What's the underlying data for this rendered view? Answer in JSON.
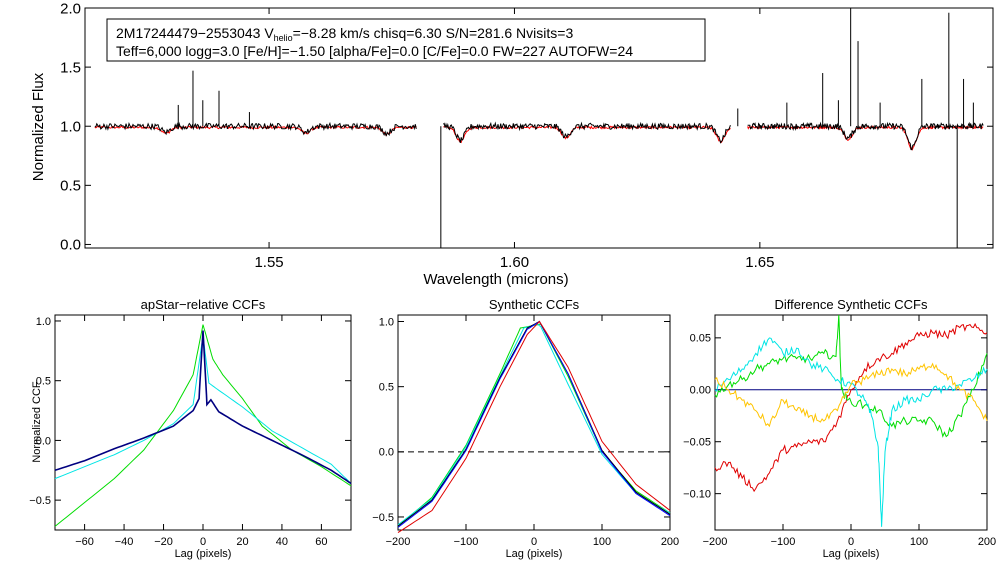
{
  "chart_data": [
    {
      "type": "line",
      "id": "spectrum",
      "title": "",
      "xlabel": "Wavelength (microns)",
      "ylabel": "Normalized Flux",
      "xlim": [
        1.5125,
        1.6975
      ],
      "ylim": [
        -0.03,
        2.0
      ],
      "xticks": [
        "1.55",
        "1.60",
        "1.65"
      ],
      "yticks": [
        "0.0",
        "0.5",
        "1.0",
        "1.5",
        "2.0"
      ],
      "info": {
        "star_id": "2M17244479−2553043",
        "vhelio_label": "V",
        "vhelio_sub": "helio",
        "vhelio_value": "=−8.28 km/s",
        "rest_line1": "  chisq=6.30  S/N=281.6  Nvisits=3",
        "line2": "Teff=6,000 logg=3.0 [Fe/H]=−1.50 [alpha/Fe]=0.0 [C/Fe]=0.0 FW=227 AUTOFW=24"
      },
      "chips": [
        [
          1.5145,
          1.58
        ],
        [
          1.5855,
          1.644
        ],
        [
          1.6475,
          1.6955
        ]
      ],
      "series": [
        {
          "name": "observed",
          "color": "#000000",
          "level": 1.0
        },
        {
          "name": "model",
          "color": "#ff0000",
          "level": 0.99
        }
      ],
      "spikes": [
        {
          "x": 1.5315,
          "y": 1.18
        },
        {
          "x": 1.5345,
          "y": 1.47
        },
        {
          "x": 1.5365,
          "y": 1.22
        },
        {
          "x": 1.5398,
          "y": 1.3
        },
        {
          "x": 1.546,
          "y": 1.12
        },
        {
          "x": 1.6455,
          "y": 1.15
        },
        {
          "x": 1.6555,
          "y": 1.2
        },
        {
          "x": 1.6628,
          "y": 1.45
        },
        {
          "x": 1.666,
          "y": 1.22
        },
        {
          "x": 1.6685,
          "y": 2.0
        },
        {
          "x": 1.67,
          "y": 1.72
        },
        {
          "x": 1.6745,
          "y": 1.2
        },
        {
          "x": 1.683,
          "y": 1.4
        },
        {
          "x": 1.6885,
          "y": 1.96
        },
        {
          "x": 1.6915,
          "y": 1.4
        },
        {
          "x": 1.6935,
          "y": 1.2
        }
      ],
      "drops": [
        {
          "x": 1.585,
          "y": -0.03
        },
        {
          "x": 1.6902,
          "y": -0.03
        }
      ],
      "absorptions": [
        {
          "x": 1.589,
          "depth": 0.12
        },
        {
          "x": 1.6105,
          "depth": 0.09
        },
        {
          "x": 1.642,
          "depth": 0.12
        },
        {
          "x": 1.668,
          "depth": 0.1
        },
        {
          "x": 1.681,
          "depth": 0.18
        },
        {
          "x": 1.529,
          "depth": 0.05
        },
        {
          "x": 1.5575,
          "depth": 0.05
        },
        {
          "x": 1.574,
          "depth": 0.06
        }
      ]
    },
    {
      "type": "line",
      "id": "apstar_ccf",
      "title": "apStar−relative CCFs",
      "xlabel": "Lag (pixels)",
      "ylabel": "Normalized CCF",
      "xlim": [
        -75,
        75
      ],
      "ylim": [
        -0.75,
        1.05
      ],
      "xticks": [
        "−60",
        "−40",
        "−20",
        "0",
        "20",
        "40",
        "60"
      ],
      "yticks": [
        "−0.5",
        "0.0",
        "0.5",
        "1.0"
      ],
      "series": [
        {
          "name": "green",
          "color": "#00dd00",
          "points": [
            [
              -75,
              -0.72
            ],
            [
              -60,
              -0.52
            ],
            [
              -45,
              -0.32
            ],
            [
              -30,
              -0.08
            ],
            [
              -15,
              0.25
            ],
            [
              -5,
              0.55
            ],
            [
              0,
              0.97
            ],
            [
              5,
              0.68
            ],
            [
              10,
              0.55
            ],
            [
              20,
              0.35
            ],
            [
              30,
              0.12
            ],
            [
              45,
              -0.08
            ],
            [
              60,
              -0.22
            ],
            [
              75,
              -0.38
            ]
          ]
        },
        {
          "name": "cyan",
          "color": "#00e5e5",
          "points": [
            [
              -75,
              -0.32
            ],
            [
              -60,
              -0.22
            ],
            [
              -45,
              -0.12
            ],
            [
              -30,
              0.0
            ],
            [
              -15,
              0.14
            ],
            [
              -5,
              0.3
            ],
            [
              0,
              0.88
            ],
            [
              3,
              0.48
            ],
            [
              8,
              0.42
            ],
            [
              20,
              0.28
            ],
            [
              35,
              0.08
            ],
            [
              50,
              -0.06
            ],
            [
              65,
              -0.2
            ],
            [
              75,
              -0.36
            ]
          ]
        },
        {
          "name": "navy",
          "color": "#000080",
          "points": [
            [
              -75,
              -0.25
            ],
            [
              -60,
              -0.17
            ],
            [
              -45,
              -0.07
            ],
            [
              -30,
              0.02
            ],
            [
              -15,
              0.12
            ],
            [
              -5,
              0.25
            ],
            [
              -2,
              0.35
            ],
            [
              0,
              0.92
            ],
            [
              2,
              0.3
            ],
            [
              4,
              0.34
            ],
            [
              8,
              0.24
            ],
            [
              20,
              0.12
            ],
            [
              35,
              0.0
            ],
            [
              50,
              -0.12
            ],
            [
              65,
              -0.25
            ],
            [
              75,
              -0.36
            ]
          ]
        }
      ]
    },
    {
      "type": "line",
      "id": "synthetic_ccf",
      "title": "Synthetic CCFs",
      "xlabel": "Lag (pixels)",
      "ylabel": "",
      "xlim": [
        -200,
        200
      ],
      "ylim": [
        -0.6,
        1.05
      ],
      "xticks": [
        "−200",
        "−100",
        "0",
        "100",
        "200"
      ],
      "yticks": [
        "−0.5",
        "0.0",
        "0.5",
        "1.0"
      ],
      "zero_line": 0.0,
      "series": [
        {
          "name": "green",
          "color": "#00dd00",
          "points": [
            [
              -200,
              -0.57
            ],
            [
              -150,
              -0.35
            ],
            [
              -100,
              0.05
            ],
            [
              -50,
              0.6
            ],
            [
              -20,
              0.95
            ],
            [
              0,
              0.97
            ],
            [
              10,
              0.98
            ],
            [
              50,
              0.58
            ],
            [
              100,
              0.0
            ],
            [
              150,
              -0.3
            ],
            [
              200,
              -0.47
            ]
          ]
        },
        {
          "name": "cyan",
          "color": "#00e5e5",
          "points": [
            [
              -200,
              -0.56
            ],
            [
              -150,
              -0.36
            ],
            [
              -100,
              0.04
            ],
            [
              -50,
              0.58
            ],
            [
              -15,
              0.95
            ],
            [
              5,
              0.98
            ],
            [
              10,
              0.96
            ],
            [
              50,
              0.52
            ],
            [
              100,
              -0.02
            ],
            [
              150,
              -0.32
            ],
            [
              200,
              -0.47
            ]
          ]
        },
        {
          "name": "black",
          "color": "#000000",
          "points": [
            [
              -200,
              -0.57
            ],
            [
              -150,
              -0.37
            ],
            [
              -100,
              0.02
            ],
            [
              -50,
              0.57
            ],
            [
              -10,
              0.95
            ],
            [
              8,
              1.0
            ],
            [
              50,
              0.6
            ],
            [
              100,
              0.01
            ],
            [
              150,
              -0.31
            ],
            [
              200,
              -0.48
            ]
          ]
        },
        {
          "name": "blue",
          "color": "#0000ff",
          "points": [
            [
              -200,
              -0.58
            ],
            [
              -150,
              -0.38
            ],
            [
              -100,
              0.01
            ],
            [
              -50,
              0.56
            ],
            [
              -10,
              0.94
            ],
            [
              8,
              1.0
            ],
            [
              50,
              0.6
            ],
            [
              100,
              0.0
            ],
            [
              150,
              -0.32
            ],
            [
              200,
              -0.49
            ]
          ]
        },
        {
          "name": "red",
          "color": "#e00000",
          "points": [
            [
              -200,
              -0.62
            ],
            [
              -150,
              -0.45
            ],
            [
              -100,
              -0.05
            ],
            [
              -50,
              0.5
            ],
            [
              -10,
              0.9
            ],
            [
              8,
              1.0
            ],
            [
              50,
              0.65
            ],
            [
              100,
              0.08
            ],
            [
              150,
              -0.25
            ],
            [
              200,
              -0.45
            ]
          ]
        }
      ]
    },
    {
      "type": "line",
      "id": "difference_ccf",
      "title": "Difference Synthetic CCFs",
      "xlabel": "Lag (pixels)",
      "ylabel": "",
      "xlim": [
        -200,
        200
      ],
      "ylim": [
        -0.135,
        0.072
      ],
      "xticks": [
        "−200",
        "−100",
        "0",
        "100",
        "200"
      ],
      "yticks": [
        "−0.10",
        "−0.05",
        "0.00",
        "0.05"
      ],
      "series": [
        {
          "name": "navy",
          "color": "#000080",
          "points": [
            [
              -200,
              0.0
            ],
            [
              200,
              0.0
            ]
          ]
        },
        {
          "name": "red",
          "color": "#e00000",
          "points": [
            [
              -200,
              -0.075
            ],
            [
              -180,
              -0.07
            ],
            [
              -160,
              -0.085
            ],
            [
              -140,
              -0.095
            ],
            [
              -120,
              -0.08
            ],
            [
              -100,
              -0.058
            ],
            [
              -80,
              -0.055
            ],
            [
              -60,
              -0.05
            ],
            [
              -40,
              -0.05
            ],
            [
              -20,
              -0.03
            ],
            [
              0,
              0.0
            ],
            [
              20,
              0.02
            ],
            [
              40,
              0.03
            ],
            [
              60,
              0.035
            ],
            [
              80,
              0.045
            ],
            [
              100,
              0.052
            ],
            [
              120,
              0.055
            ],
            [
              140,
              0.052
            ],
            [
              160,
              0.06
            ],
            [
              180,
              0.06
            ],
            [
              200,
              0.055
            ]
          ]
        },
        {
          "name": "green",
          "color": "#00dd00",
          "points": [
            [
              -200,
              -0.005
            ],
            [
              -180,
              0.005
            ],
            [
              -160,
              0.01
            ],
            [
              -140,
              0.02
            ],
            [
              -120,
              0.025
            ],
            [
              -100,
              0.03
            ],
            [
              -80,
              0.03
            ],
            [
              -60,
              0.03
            ],
            [
              -40,
              0.035
            ],
            [
              -22,
              0.032
            ],
            [
              -18,
              0.072
            ],
            [
              -14,
              0.0
            ],
            [
              -5,
              -0.01
            ],
            [
              20,
              -0.015
            ],
            [
              40,
              -0.02
            ],
            [
              60,
              -0.035
            ],
            [
              80,
              -0.03
            ],
            [
              100,
              -0.03
            ],
            [
              120,
              -0.03
            ],
            [
              140,
              -0.045
            ],
            [
              160,
              -0.025
            ],
            [
              180,
              0.0
            ],
            [
              200,
              0.035
            ]
          ]
        },
        {
          "name": "cyan",
          "color": "#00e5e5",
          "points": [
            [
              -200,
              0.0
            ],
            [
              -180,
              0.01
            ],
            [
              -160,
              0.02
            ],
            [
              -140,
              0.035
            ],
            [
              -120,
              0.05
            ],
            [
              -100,
              0.035
            ],
            [
              -80,
              0.04
            ],
            [
              -60,
              0.025
            ],
            [
              -40,
              0.02
            ],
            [
              -20,
              0.01
            ],
            [
              0,
              0.005
            ],
            [
              20,
              -0.01
            ],
            [
              30,
              -0.025
            ],
            [
              40,
              -0.055
            ],
            [
              45,
              -0.132
            ],
            [
              50,
              -0.06
            ],
            [
              60,
              -0.02
            ],
            [
              80,
              -0.01
            ],
            [
              100,
              -0.01
            ],
            [
              120,
              0.0
            ],
            [
              140,
              0.0
            ],
            [
              160,
              0.005
            ],
            [
              180,
              0.01
            ],
            [
              200,
              0.02
            ]
          ]
        },
        {
          "name": "orange",
          "color": "#ffc400",
          "points": [
            [
              -200,
              0.01
            ],
            [
              -180,
              0.0
            ],
            [
              -160,
              -0.01
            ],
            [
              -140,
              -0.02
            ],
            [
              -120,
              -0.035
            ],
            [
              -100,
              -0.01
            ],
            [
              -80,
              -0.02
            ],
            [
              -60,
              -0.025
            ],
            [
              -40,
              -0.03
            ],
            [
              -20,
              -0.02
            ],
            [
              0,
              0.005
            ],
            [
              20,
              0.01
            ],
            [
              40,
              0.015
            ],
            [
              60,
              0.02
            ],
            [
              80,
              0.015
            ],
            [
              100,
              0.02
            ],
            [
              120,
              0.025
            ],
            [
              140,
              0.015
            ],
            [
              160,
              0.0
            ],
            [
              180,
              -0.01
            ],
            [
              200,
              -0.03
            ]
          ]
        }
      ]
    }
  ]
}
